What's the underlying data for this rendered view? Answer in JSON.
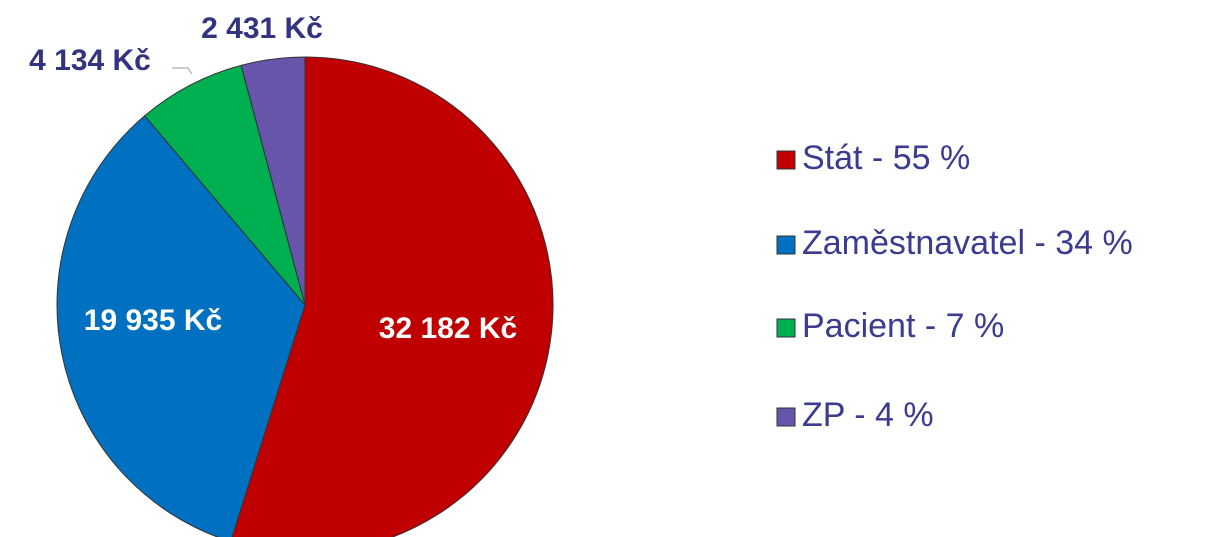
{
  "chart_data": {
    "type": "pie",
    "categories": [
      "Stát - 55 %",
      "Zaměstnavatel - 34 %",
      "Pacient - 7 %",
      "ZP - 4 %"
    ],
    "values": [
      32182,
      19935,
      4134,
      2431
    ],
    "value_labels": [
      "32 182 Kč",
      "19 935 Kč",
      "4 134 Kč",
      "2 431 Kč"
    ],
    "colors": [
      "#c00000",
      "#0070c0",
      "#00b050",
      "#6655aa"
    ],
    "legend": "right"
  }
}
